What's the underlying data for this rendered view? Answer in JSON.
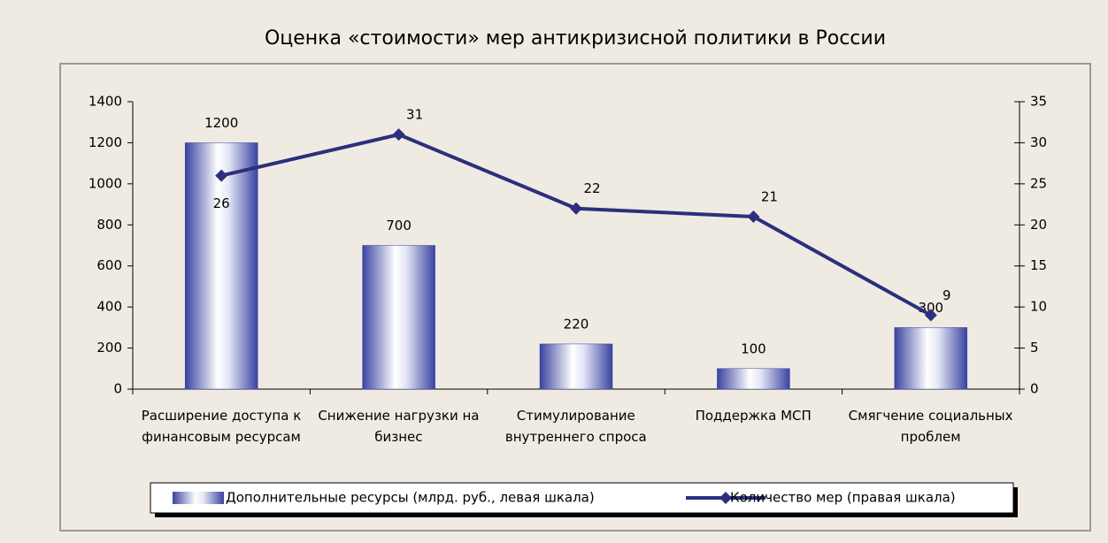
{
  "chart_data": {
    "type": "bar-line",
    "title": "Оценка «стоимости» мер антикризисной политики в России",
    "categories": [
      "Расширение доступа к финансовым ресурсам",
      "Снижение нагрузки на бизнес",
      "Стимулирование внутреннего спроса",
      "Поддержка МСП",
      "Смягчение социальных проблем"
    ],
    "series": [
      {
        "name": "Дополнительные ресурсы (млрд. руб., левая шкала)",
        "type": "bar",
        "color": "#3a43a0",
        "values": [
          1200,
          700,
          220,
          100,
          300
        ]
      },
      {
        "name": "Количество мер (правая шкала)",
        "type": "line",
        "axis": "y2",
        "color": "#2c2f7c",
        "values": [
          26,
          31,
          22,
          21,
          9
        ]
      }
    ],
    "ylim": [
      0,
      1400
    ],
    "yticks": [
      0,
      200,
      400,
      600,
      800,
      1000,
      1200,
      1400
    ],
    "y2lim": [
      0,
      35
    ],
    "y2ticks": [
      0,
      5,
      10,
      15,
      20,
      25,
      30,
      35
    ],
    "legend": "bottom"
  }
}
